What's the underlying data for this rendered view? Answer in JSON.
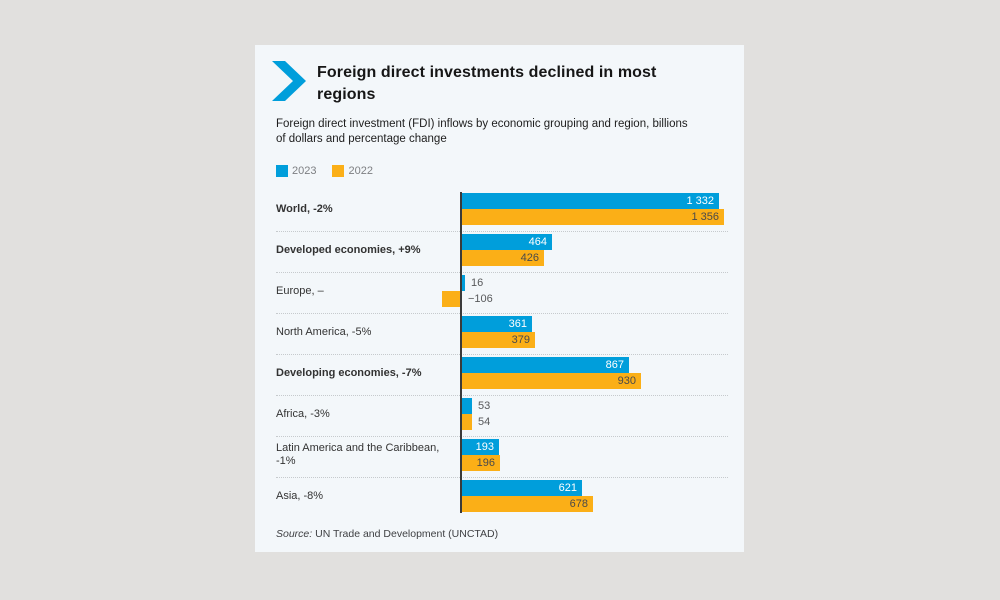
{
  "page": {
    "background_color": "#e1e0de",
    "card_background_color": "#f3f7fa"
  },
  "header": {
    "title": "Foreign direct investments declined in most regions",
    "chevron_icon_color": "#009edb"
  },
  "chart_data": {
    "type": "bar",
    "orientation": "horizontal",
    "title": "Foreign direct investments declined in most regions",
    "subtitle": "Foreign direct investment (FDI) inflows by economic grouping and region, billions of dollars and percentage change",
    "unit": "billions of dollars",
    "legend": [
      {
        "label": "2023",
        "color": "#009edb"
      },
      {
        "label": "2022",
        "color": "#fbaf17"
      }
    ],
    "legend_position": "top-left",
    "axis": {
      "zero_line": true,
      "grid": false,
      "approx_max": 1356
    },
    "rows": [
      {
        "label": "World, -2%",
        "bold": true,
        "values": {
          "y2023": 1332,
          "y2022": 1356
        },
        "display": {
          "y2023": "1 332",
          "y2022": "1 356"
        }
      },
      {
        "label": "Developed economies, +9%",
        "bold": true,
        "values": {
          "y2023": 464,
          "y2022": 426
        },
        "display": {
          "y2023": "464",
          "y2022": "426"
        }
      },
      {
        "label": "Europe, –",
        "bold": false,
        "values": {
          "y2023": 16,
          "y2022": -106
        },
        "display": {
          "y2023": "16",
          "y2022": "−106"
        }
      },
      {
        "label": "North America, -5%",
        "bold": false,
        "values": {
          "y2023": 361,
          "y2022": 379
        },
        "display": {
          "y2023": "361",
          "y2022": "379"
        }
      },
      {
        "label": "Developing economies, -7%",
        "bold": true,
        "values": {
          "y2023": 867,
          "y2022": 930
        },
        "display": {
          "y2023": "867",
          "y2022": "930"
        }
      },
      {
        "label": "Africa, -3%",
        "bold": false,
        "values": {
          "y2023": 53,
          "y2022": 54
        },
        "display": {
          "y2023": "53",
          "y2022": "54"
        }
      },
      {
        "label": "Latin America and the Caribbean, -1%",
        "bold": false,
        "values": {
          "y2023": 193,
          "y2022": 196
        },
        "display": {
          "y2023": "193",
          "y2022": "196"
        }
      },
      {
        "label": "Asia, -8%",
        "bold": false,
        "values": {
          "y2023": 621,
          "y2022": 678
        },
        "display": {
          "y2023": "621",
          "y2022": "678"
        }
      }
    ],
    "colors": {
      "series_2023": "#009edb",
      "series_2022": "#fbaf17",
      "axis_line": "#3a3a3a",
      "value_text_on_blue": "#ffffff",
      "value_text_on_orange": "#4a4a4a",
      "value_text_outside": "#58595b"
    },
    "source_prefix": "Source:",
    "source": "UN Trade and Development (UNCTAD)"
  }
}
